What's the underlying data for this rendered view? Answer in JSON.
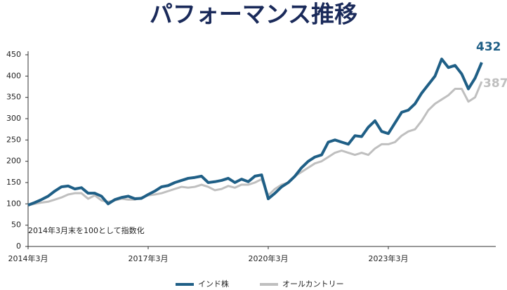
{
  "chart_data": {
    "type": "line",
    "title": "パフォーマンス推移",
    "annotation": "2014年3月末を100として指数化",
    "categories": [
      "2014年3月",
      null,
      null,
      null,
      null,
      null,
      null,
      null,
      null,
      null,
      null,
      null,
      null,
      null,
      null,
      null,
      null,
      null,
      "2017年3月",
      null,
      null,
      null,
      null,
      null,
      null,
      null,
      null,
      null,
      null,
      null,
      null,
      null,
      null,
      null,
      null,
      null,
      "2020年3月",
      null,
      null,
      null,
      null,
      null,
      null,
      null,
      null,
      null,
      null,
      null,
      null,
      null,
      null,
      null,
      null,
      null,
      "2023年3月",
      null,
      null,
      null,
      null,
      null,
      null,
      null,
      null,
      null,
      null,
      null,
      null,
      null,
      null
    ],
    "series": [
      {
        "name": "インド株",
        "color": "#1f5f86",
        "values": [
          97,
          103,
          110,
          118,
          130,
          140,
          142,
          135,
          138,
          125,
          125,
          118,
          100,
          110,
          115,
          118,
          112,
          113,
          122,
          130,
          140,
          143,
          150,
          155,
          160,
          162,
          165,
          150,
          152,
          155,
          160,
          150,
          158,
          152,
          165,
          168,
          112,
          125,
          140,
          150,
          165,
          185,
          200,
          210,
          215,
          245,
          250,
          245,
          240,
          260,
          258,
          280,
          295,
          270,
          265,
          290,
          315,
          320,
          335,
          360,
          380,
          400,
          440,
          420,
          425,
          405,
          370,
          395,
          432
        ]
      },
      {
        "name": "オールカントリー",
        "color": "#bfbfbf",
        "values": [
          97,
          100,
          103,
          105,
          110,
          115,
          122,
          125,
          125,
          112,
          120,
          108,
          105,
          108,
          112,
          110,
          110,
          115,
          120,
          122,
          125,
          130,
          135,
          140,
          138,
          140,
          145,
          140,
          132,
          135,
          142,
          138,
          145,
          145,
          150,
          158,
          120,
          135,
          145,
          150,
          165,
          175,
          185,
          195,
          200,
          210,
          220,
          225,
          220,
          215,
          220,
          215,
          230,
          240,
          240,
          245,
          260,
          270,
          275,
          295,
          320,
          335,
          345,
          355,
          370,
          370,
          340,
          350,
          387
        ]
      }
    ],
    "ylim": [
      0,
      450
    ],
    "yticks": [
      0,
      50,
      100,
      150,
      200,
      250,
      300,
      350,
      400,
      450
    ],
    "grid": false
  }
}
